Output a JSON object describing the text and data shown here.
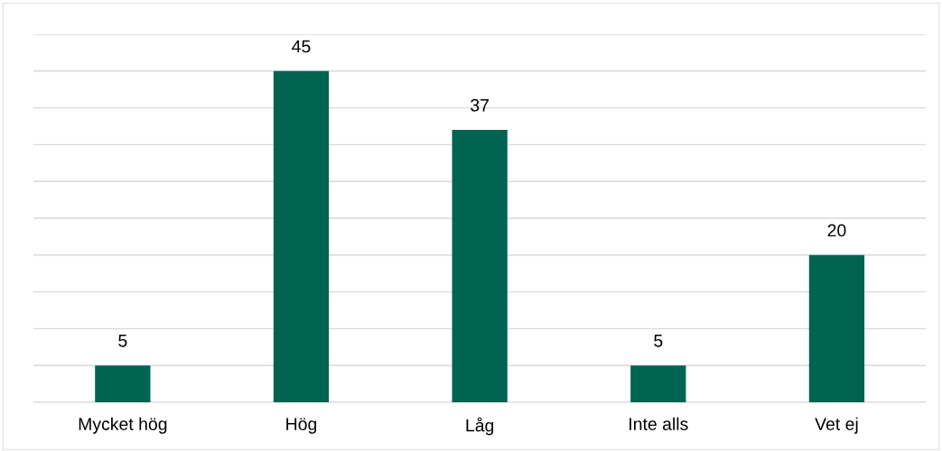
{
  "chart_data": {
    "type": "bar",
    "categories": [
      "Mycket hög",
      "Hög",
      "Låg",
      "Inte alls",
      "Vet ej"
    ],
    "values": [
      5,
      45,
      37,
      5,
      20
    ],
    "color": "#006450",
    "data_labels": true,
    "ylim": [
      0,
      50
    ],
    "yticks": [
      {
        "value": 0,
        "label": null
      },
      {
        "value": 5,
        "label": null
      },
      {
        "value": 10,
        "label": null
      },
      {
        "value": 15,
        "label": null
      },
      {
        "value": 20,
        "label": null
      },
      {
        "value": 25,
        "label": null
      },
      {
        "value": 30,
        "label": null
      },
      {
        "value": 35,
        "label": null
      },
      {
        "value": 40,
        "label": null
      },
      {
        "value": 45,
        "label": null
      },
      {
        "value": 50,
        "label": null
      }
    ],
    "grid": "y",
    "tick_labels": "x",
    "legend": false
  }
}
